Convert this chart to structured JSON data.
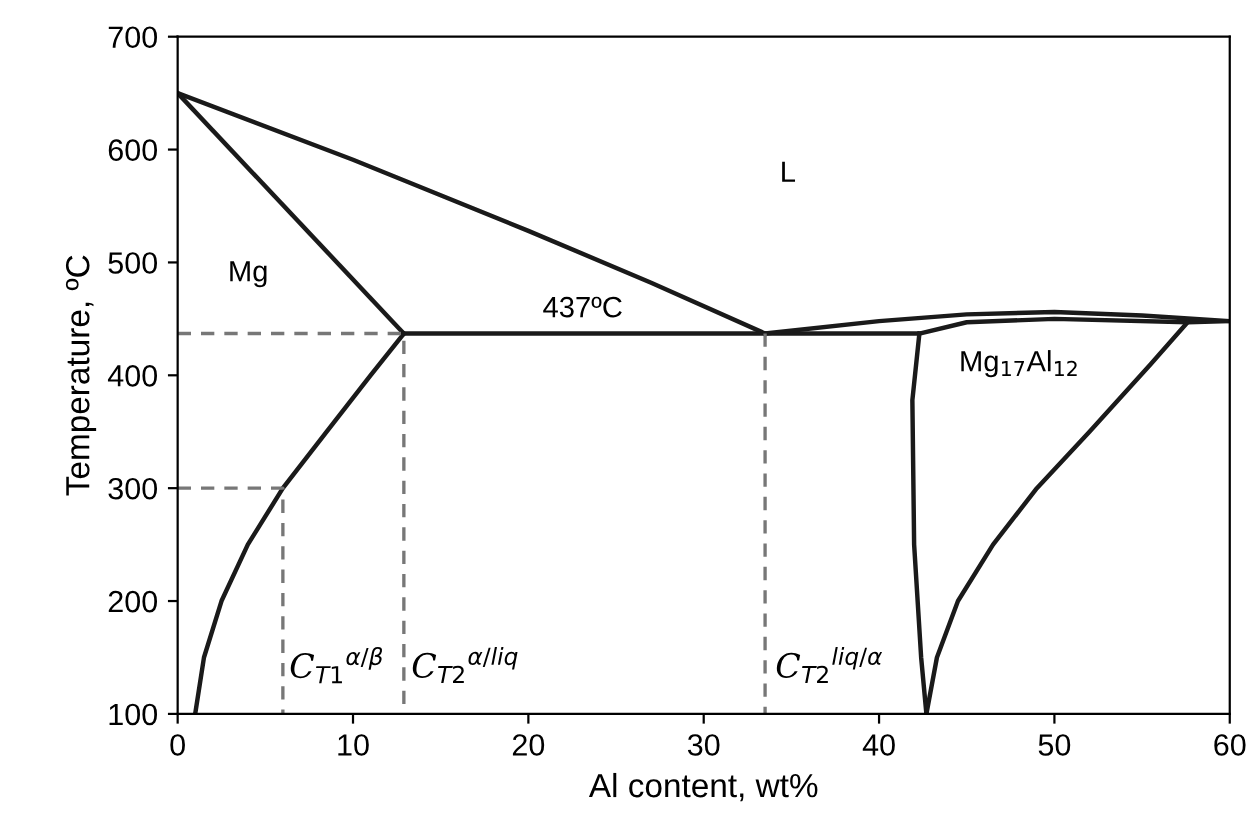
{
  "chart_data": {
    "type": "line",
    "xlabel": "Al content, wt%",
    "ylabel": "Temperature, ºC",
    "xlim": [
      0,
      60
    ],
    "ylim": [
      100,
      700
    ],
    "xticks": [
      0,
      10,
      20,
      30,
      40,
      50,
      60
    ],
    "yticks": [
      100,
      200,
      300,
      400,
      500,
      600,
      700
    ],
    "grid": false,
    "legend": false,
    "marker": "none",
    "series": [
      {
        "color": "#1a1a1a",
        "x": [
          0,
          10,
          20,
          27,
          33.5
        ],
        "values": [
          650,
          591,
          528,
          482,
          437
        ]
      },
      {
        "color": "#1a1a1a",
        "x": [
          0,
          12.9
        ],
        "values": [
          650,
          437
        ]
      },
      {
        "color": "#1a1a1a",
        "x": [
          12.9,
          42.3,
          45,
          50,
          57.6,
          60
        ],
        "values": [
          437,
          437,
          447,
          450,
          447,
          448
        ]
      },
      {
        "color": "#1a1a1a",
        "x": [
          33.5,
          40,
          45,
          50,
          55,
          60
        ],
        "values": [
          437,
          448,
          454,
          456,
          453,
          448
        ]
      },
      {
        "color": "#1a1a1a",
        "x": [
          1,
          1.5,
          2.5,
          4,
          6,
          8.5,
          11,
          12.9
        ],
        "values": [
          100,
          150,
          200,
          250,
          300,
          350,
          400,
          437
        ]
      },
      {
        "color": "#1a1a1a",
        "x": [
          42.3,
          41.9,
          42.0,
          42.4,
          42.7
        ],
        "values": [
          437,
          378,
          250,
          150,
          100
        ]
      },
      {
        "color": "#1a1a1a",
        "x": [
          42.7,
          43.3,
          44.5,
          46.5,
          49,
          52,
          55.5,
          57.6
        ],
        "values": [
          100,
          150,
          200,
          250,
          300,
          350,
          410,
          447
        ]
      },
      {
        "color": "#777777",
        "line_style": "dashed",
        "x": [
          0,
          12.9,
          12.9
        ],
        "values": [
          437,
          437,
          100
        ]
      },
      {
        "color": "#777777",
        "line_style": "dashed",
        "x": [
          0,
          6,
          6
        ],
        "values": [
          300,
          300,
          100
        ]
      },
      {
        "color": "#777777",
        "line_style": "dashed",
        "x": [
          33.5,
          33.5
        ],
        "values": [
          437,
          100
        ]
      }
    ],
    "annotations": [
      "Mg",
      "L",
      "437ºC",
      "Mg$_{17}$Al$_{12}$",
      "C$_{T1}$$^{α/β}$",
      "C$_{T2}$$^{α/liq}$",
      "C$_{T2}$$^{liq/α}$"
    ]
  }
}
